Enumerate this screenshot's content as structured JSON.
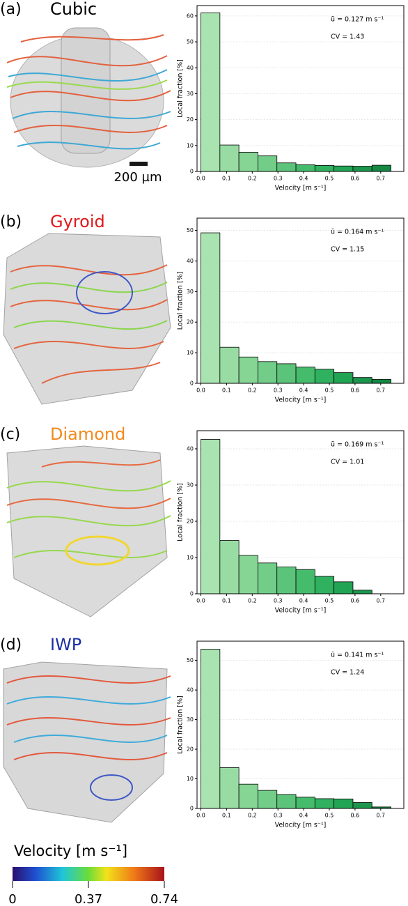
{
  "chart_data": [
    {
      "type": "histogram",
      "panel_label": "(a)",
      "title": "Cubic",
      "title_color": "#000000",
      "scale_bar": "200 µm",
      "annotations": [
        "ū = 0.127 m s⁻¹",
        "CV = 1.43"
      ],
      "xlabel": "Velocity [m s⁻¹]",
      "ylabel": "Local fraction [%]",
      "bins": [
        0,
        0.074,
        0.148,
        0.222,
        0.296,
        0.37,
        0.444,
        0.518,
        0.592,
        0.666,
        0.74
      ],
      "values": [
        61.2,
        10.2,
        7.4,
        6.0,
        3.3,
        2.6,
        2.3,
        2.1,
        2.0,
        2.4
      ],
      "colors": [
        "#a8e3b0",
        "#98dca3",
        "#86d595",
        "#72cd88",
        "#5cc47a",
        "#45bb6c",
        "#2fb15f",
        "#22a455",
        "#1b964c",
        "#158843"
      ],
      "xlim": [
        -0.015,
        0.79
      ],
      "ylim": [
        0,
        64
      ],
      "xticks": [
        {
          "value": 0,
          "label": "0.0"
        },
        0.1,
        0.2,
        0.3,
        0.4,
        0.5,
        0.6,
        0.7
      ],
      "yticks": [
        0,
        10,
        20,
        30,
        40,
        50,
        60
      ],
      "grid": true
    },
    {
      "type": "histogram",
      "panel_label": "(b)",
      "title": "Gyroid",
      "title_color": "#e0191b",
      "annotations": [
        "ū = 0.164 m s⁻¹",
        "CV = 1.15"
      ],
      "xlabel": "Velocity [m s⁻¹]",
      "ylabel": "Local fraction [%]",
      "bins": [
        0,
        0.074,
        0.148,
        0.222,
        0.296,
        0.37,
        0.444,
        0.518,
        0.592,
        0.666,
        0.74
      ],
      "values": [
        49.2,
        11.8,
        8.6,
        7.1,
        6.4,
        5.3,
        4.6,
        3.5,
        1.9,
        1.3
      ],
      "colors": [
        "#a8e3b0",
        "#98dca3",
        "#86d595",
        "#72cd88",
        "#5cc47a",
        "#45bb6c",
        "#2fb15f",
        "#22a455",
        "#1b964c",
        "#158843"
      ],
      "xlim": [
        -0.015,
        0.79
      ],
      "ylim": [
        0,
        54
      ],
      "xticks": [
        {
          "value": 0,
          "label": "0.0"
        },
        0.1,
        0.2,
        0.3,
        0.4,
        0.5,
        0.6,
        0.7
      ],
      "yticks": [
        0,
        10,
        20,
        30,
        40,
        50
      ],
      "grid": true
    },
    {
      "type": "histogram",
      "panel_label": "(c)",
      "title": "Diamond",
      "title_color": "#f28a1e",
      "annotations": [
        "ū = 0.169 m s⁻¹",
        "CV = 1.01"
      ],
      "xlabel": "Velocity [m s⁻¹]",
      "ylabel": "Local fraction [%]",
      "bins": [
        0,
        0.074,
        0.148,
        0.222,
        0.296,
        0.37,
        0.444,
        0.518,
        0.592,
        0.666,
        0.74
      ],
      "values": [
        42.6,
        14.7,
        10.6,
        8.5,
        7.4,
        6.7,
        4.8,
        3.3,
        1.0,
        0
      ],
      "colors": [
        "#a8e3b0",
        "#98dca3",
        "#86d595",
        "#72cd88",
        "#5cc47a",
        "#45bb6c",
        "#2fb15f",
        "#22a455",
        "#1b964c",
        "#158843"
      ],
      "xlim": [
        -0.015,
        0.79
      ],
      "ylim": [
        0,
        45
      ],
      "xticks": [
        {
          "value": 0,
          "label": "0.0"
        },
        0.1,
        0.2,
        0.3,
        0.4,
        0.5,
        0.6,
        0.7
      ],
      "yticks": [
        0,
        10,
        20,
        30,
        40
      ],
      "grid": true
    },
    {
      "type": "histogram",
      "panel_label": "(d)",
      "title": "IWP",
      "title_color": "#1a2fa8",
      "annotations": [
        "ū = 0.141 m s⁻¹",
        "CV = 1.24"
      ],
      "xlabel": "Velocity [m s⁻¹]",
      "ylabel": "Local fraction [%]",
      "bins": [
        0,
        0.074,
        0.148,
        0.222,
        0.296,
        0.37,
        0.444,
        0.518,
        0.592,
        0.666,
        0.74
      ],
      "values": [
        53.8,
        13.8,
        8.2,
        6.1,
        4.7,
        3.8,
        3.3,
        3.2,
        2.0,
        0.5
      ],
      "colors": [
        "#a8e3b0",
        "#98dca3",
        "#86d595",
        "#72cd88",
        "#5cc47a",
        "#45bb6c",
        "#2fb15f",
        "#22a455",
        "#1b964c",
        "#158843"
      ],
      "xlim": [
        -0.015,
        0.79
      ],
      "ylim": [
        0,
        56.5
      ],
      "xticks": [
        {
          "value": 0,
          "label": "0.0"
        },
        0.1,
        0.2,
        0.3,
        0.4,
        0.5,
        0.6,
        0.7
      ],
      "yticks": [
        0,
        10,
        20,
        30,
        40,
        50
      ],
      "grid": true
    }
  ],
  "colorbar": {
    "label": "Velocity [m s⁻¹]",
    "lim": [
      0,
      0.74
    ],
    "ticks": [
      0,
      0.37,
      0.74
    ]
  }
}
